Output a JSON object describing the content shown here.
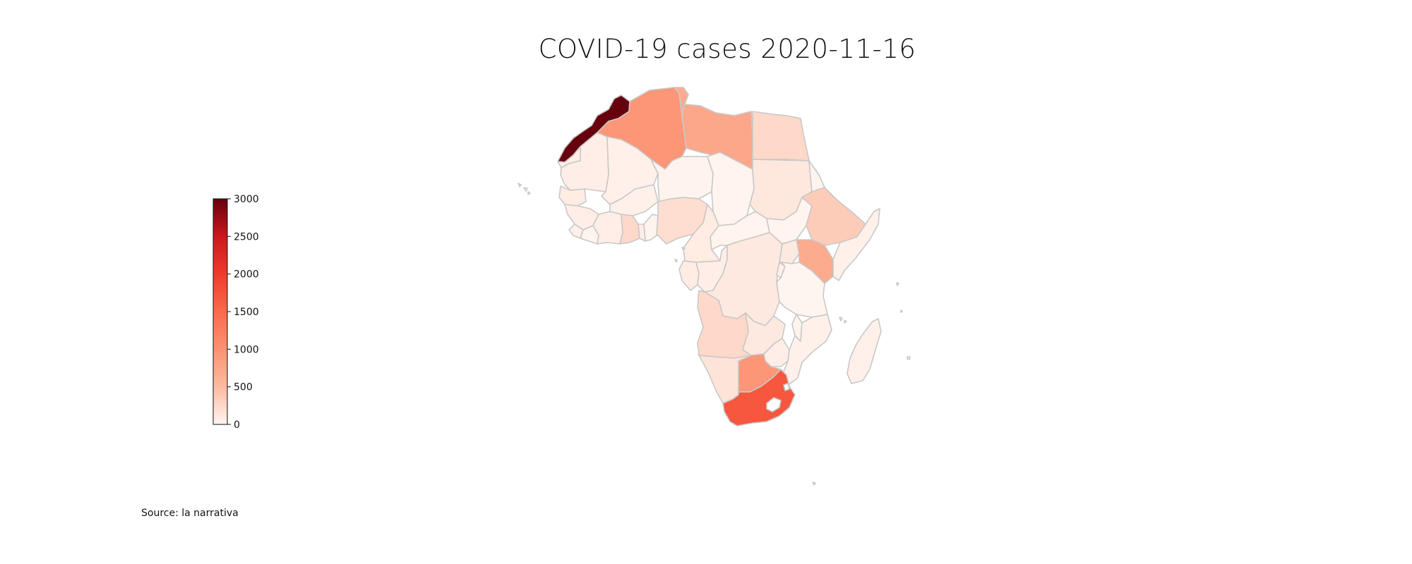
{
  "title": "COVID-19 cases 2020-11-16",
  "source": "Source: la narrativa",
  "colorbar": {
    "min": 0,
    "max": 3000,
    "ticks": [
      "0",
      "500",
      "1000",
      "1500",
      "2000",
      "2500",
      "3000"
    ],
    "colors": [
      "#fff5f0",
      "#fcbba1",
      "#fc9272",
      "#fb6a4a",
      "#ef3b2c",
      "#cb181d",
      "#67000d"
    ]
  },
  "chart_data": {
    "type": "choropleth",
    "title": "COVID-19 cases 2020-11-16",
    "colorbar_range": [
      0,
      3000
    ],
    "regions": [
      {
        "name": "Morocco",
        "value": 3000
      },
      {
        "name": "Algeria",
        "value": 950
      },
      {
        "name": "Tunisia",
        "value": 700
      },
      {
        "name": "Libya",
        "value": 750
      },
      {
        "name": "Egypt",
        "value": 250
      },
      {
        "name": "Western Sahara",
        "value": 60
      },
      {
        "name": "Mauritania",
        "value": 60
      },
      {
        "name": "Mali",
        "value": 40
      },
      {
        "name": "Niger",
        "value": 20
      },
      {
        "name": "Chad",
        "value": 10
      },
      {
        "name": "Sudan",
        "value": 120
      },
      {
        "name": "Senegal",
        "value": 80
      },
      {
        "name": "Guinea",
        "value": 60
      },
      {
        "name": "Burkina Faso",
        "value": 40
      },
      {
        "name": "Ghana",
        "value": 250
      },
      {
        "name": "Nigeria",
        "value": 200
      },
      {
        "name": "Cameroon",
        "value": 80
      },
      {
        "name": "Central African Republic",
        "value": 10
      },
      {
        "name": "Ethiopia",
        "value": 350
      },
      {
        "name": "Somalia",
        "value": 40
      },
      {
        "name": "Kenya",
        "value": 700
      },
      {
        "name": "Uganda",
        "value": 100
      },
      {
        "name": "DR Congo",
        "value": 100
      },
      {
        "name": "Congo",
        "value": 60
      },
      {
        "name": "Gabon",
        "value": 80
      },
      {
        "name": "Tanzania",
        "value": 0
      },
      {
        "name": "Angola",
        "value": 250
      },
      {
        "name": "Zambia",
        "value": 100
      },
      {
        "name": "Mozambique",
        "value": 40
      },
      {
        "name": "Namibia",
        "value": 150
      },
      {
        "name": "Botswana",
        "value": 950
      },
      {
        "name": "Zimbabwe",
        "value": 60
      },
      {
        "name": "South Africa",
        "value": 1700
      },
      {
        "name": "Madagascar",
        "value": 40
      }
    ]
  }
}
